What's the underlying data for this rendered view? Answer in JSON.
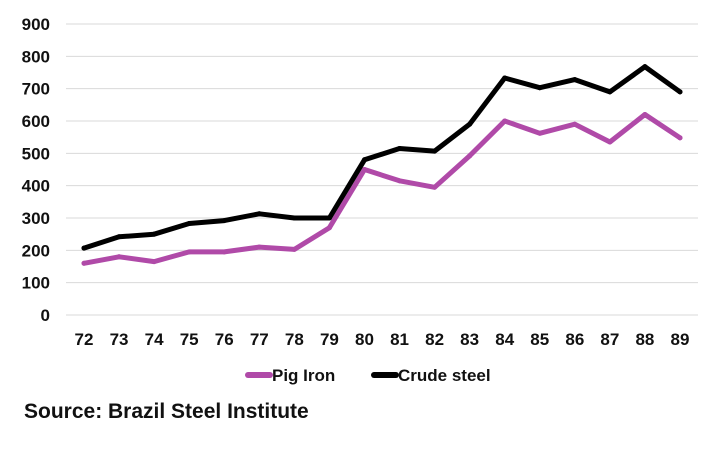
{
  "chart_data": {
    "type": "line",
    "title": "",
    "xlabel": "",
    "ylabel": "",
    "categories": [
      "72",
      "73",
      "74",
      "75",
      "76",
      "77",
      "78",
      "79",
      "80",
      "81",
      "82",
      "83",
      "84",
      "85",
      "86",
      "87",
      "88",
      "89"
    ],
    "ylim": [
      0,
      900
    ],
    "yticks": [
      0,
      100,
      200,
      300,
      400,
      500,
      600,
      700,
      800,
      900
    ],
    "grid": "horizontal",
    "legend_position": "bottom",
    "series": [
      {
        "name": "Pig Iron",
        "color": "#b04aa8",
        "values": [
          160,
          180,
          165,
          195,
          195,
          210,
          203,
          270,
          450,
          415,
          395,
          492,
          600,
          562,
          590,
          535,
          620,
          548
        ]
      },
      {
        "name": "Crude steel",
        "color": "#000000",
        "values": [
          207,
          242,
          250,
          283,
          292,
          313,
          300,
          300,
          480,
          515,
          507,
          590,
          733,
          703,
          728,
          690,
          768,
          690
        ]
      }
    ]
  },
  "source": "Source: Brazil Steel Institute"
}
